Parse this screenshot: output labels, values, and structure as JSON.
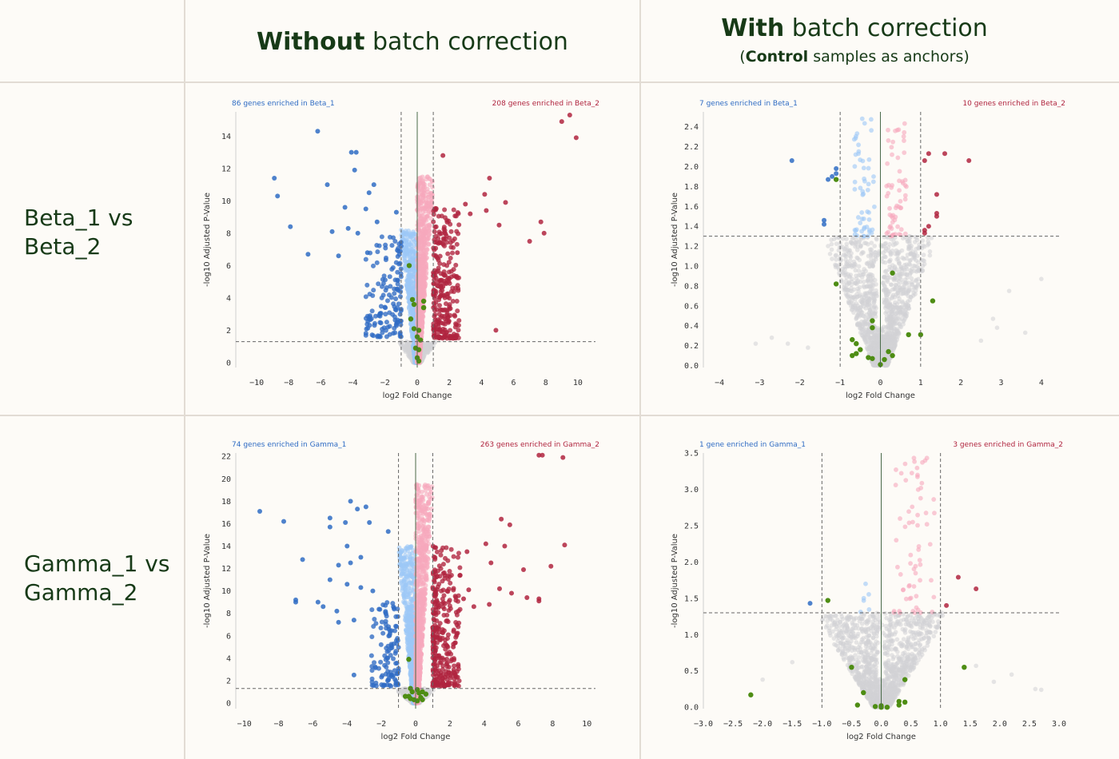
{
  "header": {
    "col1": {
      "bold": "Without",
      "rest": " batch correction",
      "sub_pre": "",
      "sub_bold": "",
      "sub_rest": ""
    },
    "col2": {
      "bold": "With",
      "rest": " batch correction",
      "sub_pre": "(",
      "sub_bold": "Control",
      "sub_rest": " samples as anchors)"
    }
  },
  "rows": [
    {
      "line1": "Beta_1 vs",
      "line2": "Beta_2"
    },
    {
      "line1": "Gamma_1 vs",
      "line2": "Gamma_2"
    }
  ],
  "colors": {
    "blue_sig": "#2f6cc4",
    "blue_light": "#9cc8f7",
    "red_sig": "#b0243f",
    "pink_light": "#f7a8bc",
    "grey": "#d2d2d6",
    "green": "#4e8d14",
    "left_label": "#2f6cc4",
    "right_label": "#b0243f"
  },
  "chart_data": [
    {
      "id": "beta-uncorrected",
      "type": "scatter",
      "title": "",
      "xlabel": "log2 Fold Change",
      "ylabel": "-log10 Adjusted P-Value",
      "xlim": [
        -11.3,
        11.1
      ],
      "ylim": [
        -0.3,
        15.5
      ],
      "xticks": [
        -10,
        -8,
        -6,
        -4,
        -2,
        0,
        2,
        4,
        6,
        8,
        10
      ],
      "yticks": [
        0,
        2,
        4,
        6,
        8,
        10,
        12,
        14
      ],
      "fc_threshold": 1,
      "p_threshold": 1.3,
      "left_label": "86 genes enriched in Beta_1",
      "right_label": "208 genes enriched in Beta_2",
      "sig_down": [
        [
          -6.2,
          14.3
        ],
        [
          -4.1,
          13.0
        ],
        [
          -3.8,
          13.0
        ],
        [
          -8.9,
          11.4
        ],
        [
          -8.7,
          10.3
        ],
        [
          -5.6,
          11.0
        ],
        [
          -3.9,
          11.9
        ],
        [
          -2.7,
          11.0
        ],
        [
          -4.5,
          9.6
        ],
        [
          -3.0,
          10.5
        ],
        [
          -3.2,
          9.5
        ],
        [
          -1.3,
          9.3
        ],
        [
          -2.5,
          8.7
        ],
        [
          -4.3,
          8.3
        ],
        [
          -5.3,
          8.1
        ],
        [
          -7.9,
          8.4
        ],
        [
          -3.7,
          8.0
        ],
        [
          -6.8,
          6.7
        ],
        [
          -4.9,
          6.6
        ],
        [
          -3.1,
          6.8
        ]
      ],
      "sig_up": [
        [
          9.5,
          15.3
        ],
        [
          9.0,
          14.9
        ],
        [
          9.9,
          13.9
        ],
        [
          1.6,
          12.8
        ],
        [
          4.5,
          11.4
        ],
        [
          4.2,
          10.4
        ],
        [
          5.5,
          9.9
        ],
        [
          4.3,
          9.4
        ],
        [
          3.0,
          9.8
        ],
        [
          3.3,
          9.2
        ],
        [
          5.1,
          8.5
        ],
        [
          7.7,
          8.7
        ],
        [
          7.9,
          8.0
        ],
        [
          7.0,
          7.5
        ],
        [
          4.9,
          2.0
        ],
        [
          2.5,
          6.8
        ],
        [
          2.0,
          5.2
        ],
        [
          1.6,
          4.7
        ]
      ],
      "sig_down_band": {
        "n": 140,
        "xmin": -3.2,
        "xmax": -1.0,
        "ymin": 1.6,
        "ymax": 7.8
      },
      "sig_up_band": {
        "n": 260,
        "xmin": 1.0,
        "xmax": 2.6,
        "ymin": 1.5,
        "ymax": 9.6
      },
      "nonsig_down": {
        "n": 700,
        "xmin": -1.0,
        "xmax": 0,
        "ymax": 8.2
      },
      "nonsig_up": {
        "n": 900,
        "xmin": 0,
        "xmax": 1.0,
        "ymax": 11.5
      },
      "grey_cloud": {
        "n": 300,
        "xmax": 1.0,
        "ymax": 1.3
      },
      "highlight": [
        [
          -0.5,
          6.0
        ],
        [
          -0.3,
          3.9
        ],
        [
          -0.2,
          3.6
        ],
        [
          0.4,
          3.8
        ],
        [
          0.4,
          3.4
        ],
        [
          -0.4,
          2.7
        ],
        [
          -0.2,
          2.1
        ],
        [
          0.1,
          2.0
        ],
        [
          0.0,
          1.6
        ],
        [
          0.2,
          1.4
        ],
        [
          -0.1,
          0.9
        ],
        [
          0.1,
          0.8
        ],
        [
          0.0,
          0.3
        ],
        [
          0.1,
          0.1
        ]
      ]
    },
    {
      "id": "beta-corrected",
      "type": "scatter",
      "title": "",
      "xlabel": "log2 Fold Change",
      "ylabel": "-log10 Adjusted P-Value",
      "xlim": [
        -4.4,
        4.5
      ],
      "ylim": [
        -0.02,
        2.55
      ],
      "xticks": [
        -4,
        -3,
        -2,
        -1,
        0,
        1,
        2,
        3,
        4
      ],
      "yticks": [
        0.0,
        0.2,
        0.4,
        0.6,
        0.8,
        1.0,
        1.2,
        1.4,
        1.6,
        1.8,
        2.0,
        2.2,
        2.4
      ],
      "ytick_decimals": 1,
      "fc_threshold": 1,
      "p_threshold": 1.3,
      "left_label": "7 genes enriched in Beta_1",
      "right_label": "10 genes enriched in Beta_2",
      "sig_down": [
        [
          -2.2,
          2.06
        ],
        [
          -1.1,
          1.98
        ],
        [
          -1.3,
          1.87
        ],
        [
          -1.4,
          1.46
        ],
        [
          -1.4,
          1.42
        ],
        [
          -1.1,
          1.93
        ],
        [
          -1.2,
          1.9
        ]
      ],
      "sig_up": [
        [
          1.6,
          2.13
        ],
        [
          2.2,
          2.06
        ],
        [
          1.1,
          2.06
        ],
        [
          1.2,
          2.13
        ],
        [
          1.4,
          1.72
        ],
        [
          1.4,
          1.53
        ],
        [
          1.4,
          1.5
        ],
        [
          1.1,
          1.36
        ],
        [
          1.1,
          1.33
        ],
        [
          1.2,
          1.4
        ]
      ],
      "sig_down_band": {
        "n": 0,
        "xmin": -1.0,
        "xmax": -1.0,
        "ymin": 1.3,
        "ymax": 1.3
      },
      "sig_up_band": {
        "n": 0,
        "xmin": 1.0,
        "xmax": 1.0,
        "ymin": 1.3,
        "ymax": 1.3
      },
      "nonsig_down": {
        "n": 55,
        "xmin": -0.65,
        "xmax": -0.15,
        "ymin": 1.3,
        "ymax": 2.5
      },
      "nonsig_up": {
        "n": 60,
        "xmin": 0.15,
        "xmax": 0.65,
        "ymin": 1.3,
        "ymax": 2.5
      },
      "grey_cloud": {
        "n": 1500,
        "xmax": 1.25,
        "ymax": 1.3,
        "outliers": [
          [
            -2.7,
            0.28
          ],
          [
            -2.3,
            0.22
          ],
          [
            -1.8,
            0.18
          ],
          [
            2.8,
            0.47
          ],
          [
            2.9,
            0.38
          ],
          [
            3.2,
            0.75
          ],
          [
            4.0,
            0.87
          ],
          [
            3.6,
            0.33
          ],
          [
            2.5,
            0.25
          ],
          [
            -3.1,
            0.22
          ]
        ]
      },
      "highlight": [
        [
          -1.1,
          1.87
        ],
        [
          -1.1,
          0.82
        ],
        [
          0.3,
          0.93
        ],
        [
          1.3,
          0.65
        ],
        [
          -0.2,
          0.45
        ],
        [
          -0.2,
          0.38
        ],
        [
          -0.7,
          0.26
        ],
        [
          -0.6,
          0.22
        ],
        [
          -0.5,
          0.16
        ],
        [
          -0.6,
          0.12
        ],
        [
          -0.7,
          0.1
        ],
        [
          0.7,
          0.31
        ],
        [
          1.0,
          0.31
        ],
        [
          0.2,
          0.14
        ],
        [
          0.3,
          0.1
        ],
        [
          0.1,
          0.06
        ],
        [
          -0.3,
          0.08
        ],
        [
          -0.2,
          0.07
        ],
        [
          0.0,
          0.01
        ]
      ]
    },
    {
      "id": "gamma-uncorrected",
      "type": "scatter",
      "title": "",
      "xlabel": "log2 Fold Change",
      "ylabel": "-log10 Adjusted P-Value",
      "xlim": [
        -10.5,
        10.5
      ],
      "ylim": [
        -0.5,
        22.3
      ],
      "xticks": [
        -10,
        -8,
        -6,
        -4,
        -2,
        0,
        2,
        4,
        6,
        8,
        10
      ],
      "yticks": [
        0,
        2,
        4,
        6,
        8,
        10,
        12,
        14,
        16,
        18,
        20,
        22
      ],
      "fc_threshold": 1,
      "p_threshold": 1.3,
      "left_label": "74 genes enriched in Gamma_1",
      "right_label": "263 genes enriched in Gamma_2",
      "sig_down": [
        [
          -9.1,
          17.1
        ],
        [
          -7.7,
          16.2
        ],
        [
          -3.8,
          18.0
        ],
        [
          -3.4,
          17.3
        ],
        [
          -2.9,
          17.5
        ],
        [
          -5.0,
          16.5
        ],
        [
          -5.0,
          15.7
        ],
        [
          -4.1,
          16.1
        ],
        [
          -2.7,
          16.1
        ],
        [
          -1.6,
          15.3
        ],
        [
          -4.0,
          14.0
        ],
        [
          -3.2,
          13.0
        ],
        [
          -6.6,
          12.8
        ],
        [
          -4.5,
          12.3
        ],
        [
          -3.8,
          12.5
        ],
        [
          -5.0,
          11.0
        ],
        [
          -4.0,
          10.6
        ],
        [
          -3.2,
          10.3
        ],
        [
          -7.0,
          9.2
        ],
        [
          -7.0,
          9.0
        ],
        [
          -5.7,
          9.0
        ],
        [
          -5.4,
          8.6
        ],
        [
          -4.6,
          8.2
        ],
        [
          -3.6,
          7.4
        ],
        [
          -4.5,
          7.2
        ],
        [
          -2.5,
          10.0
        ],
        [
          -3.6,
          2.5
        ]
      ],
      "sig_up": [
        [
          7.2,
          22.1
        ],
        [
          7.4,
          22.1
        ],
        [
          8.6,
          21.9
        ],
        [
          5.0,
          16.4
        ],
        [
          5.5,
          15.9
        ],
        [
          4.1,
          14.2
        ],
        [
          5.2,
          14.0
        ],
        [
          8.7,
          14.1
        ],
        [
          3.0,
          13.5
        ],
        [
          4.4,
          12.5
        ],
        [
          6.3,
          11.9
        ],
        [
          7.9,
          12.2
        ],
        [
          2.6,
          11.4
        ],
        [
          4.9,
          10.2
        ],
        [
          5.6,
          9.8
        ],
        [
          6.5,
          9.4
        ],
        [
          7.2,
          9.3
        ],
        [
          7.2,
          9.1
        ],
        [
          4.3,
          8.8
        ],
        [
          3.1,
          10.1
        ],
        [
          2.8,
          9.3
        ],
        [
          2.5,
          8.2
        ],
        [
          3.4,
          8.6
        ],
        [
          2.4,
          6.2
        ],
        [
          2.2,
          5.0
        ]
      ],
      "sig_down_band": {
        "n": 110,
        "xmin": -2.6,
        "xmax": -1.0,
        "ymin": 1.5,
        "ymax": 9.0
      },
      "sig_up_band": {
        "n": 300,
        "xmin": 1.0,
        "xmax": 2.6,
        "ymin": 1.5,
        "ymax": 14.0
      },
      "nonsig_down": {
        "n": 700,
        "xmin": -1.0,
        "xmax": 0,
        "ymax": 14.0
      },
      "nonsig_up": {
        "n": 950,
        "xmin": 0,
        "xmax": 1.0,
        "ymax": 19.5
      },
      "grey_cloud": {
        "n": 300,
        "xmax": 1.0,
        "ymax": 1.3
      },
      "highlight": [
        [
          -0.3,
          1.3
        ],
        [
          -0.2,
          1.0
        ],
        [
          0.1,
          1.2
        ],
        [
          0.2,
          0.9
        ],
        [
          0.4,
          1.0
        ],
        [
          -0.4,
          0.6
        ],
        [
          -0.3,
          0.4
        ],
        [
          -0.1,
          0.3
        ],
        [
          0.1,
          0.2
        ],
        [
          0.3,
          0.5
        ],
        [
          0.4,
          0.3
        ],
        [
          -0.6,
          0.6
        ],
        [
          0.6,
          0.8
        ],
        [
          -0.4,
          3.9
        ]
      ]
    },
    {
      "id": "gamma-corrected",
      "type": "scatter",
      "title": "",
      "xlabel": "log2 Fold Change",
      "ylabel": "-log10 Adjusted P-Value",
      "xlim": [
        -3.0,
        3.0
      ],
      "ylim": [
        -0.02,
        3.5
      ],
      "xticks": [
        -3.0,
        -2.5,
        -2.0,
        -1.5,
        -1.0,
        -0.5,
        0.0,
        0.5,
        1.0,
        1.5,
        2.0,
        2.5,
        3.0
      ],
      "yticks": [
        0.0,
        0.5,
        1.0,
        1.5,
        2.0,
        2.5,
        3.0,
        3.5
      ],
      "ytick_decimals": 1,
      "xtick_decimals": 1,
      "fc_threshold": 1,
      "p_threshold": 1.3,
      "left_label": "1 gene enriched in Gamma_1",
      "right_label": "3 genes enriched in Gamma_2",
      "sig_down": [
        [
          -1.2,
          1.43
        ]
      ],
      "sig_up": [
        [
          1.3,
          1.79
        ],
        [
          1.6,
          1.63
        ],
        [
          1.1,
          1.4
        ]
      ],
      "sig_down_band": {
        "n": 0,
        "xmin": -1.0,
        "xmax": -1.0,
        "ymin": 1.3,
        "ymax": 1.3
      },
      "sig_up_band": {
        "n": 0,
        "xmin": 1.0,
        "xmax": 1.0,
        "ymin": 1.3,
        "ymax": 1.3
      },
      "nonsig_down": {
        "n": 6,
        "xmin": -0.35,
        "xmax": -0.2,
        "ymin": 1.3,
        "ymax": 1.8
      },
      "nonsig_up": {
        "n": 65,
        "xmin": 0.2,
        "xmax": 0.9,
        "ymin": 1.3,
        "ymax": 3.45
      },
      "grey_cloud": {
        "n": 1400,
        "xmax": 1.0,
        "ymax": 1.3,
        "outliers": [
          [
            -2.2,
            0.17
          ],
          [
            2.6,
            0.25
          ],
          [
            2.7,
            0.24
          ],
          [
            1.6,
            0.57
          ],
          [
            2.2,
            0.45
          ],
          [
            1.9,
            0.35
          ],
          [
            -2.0,
            0.38
          ],
          [
            -1.5,
            0.62
          ]
        ]
      },
      "highlight": [
        [
          -0.9,
          1.47
        ],
        [
          -0.5,
          0.55
        ],
        [
          1.4,
          0.55
        ],
        [
          -0.3,
          0.2
        ],
        [
          0.4,
          0.38
        ],
        [
          -0.4,
          0.03
        ],
        [
          0.3,
          0.03
        ],
        [
          0.3,
          0.08
        ],
        [
          0.4,
          0.07
        ],
        [
          0.0,
          0.0
        ],
        [
          0.1,
          0.0
        ],
        [
          -0.1,
          0.01
        ],
        [
          0.0,
          0.02
        ],
        [
          -2.2,
          0.17
        ]
      ]
    }
  ]
}
